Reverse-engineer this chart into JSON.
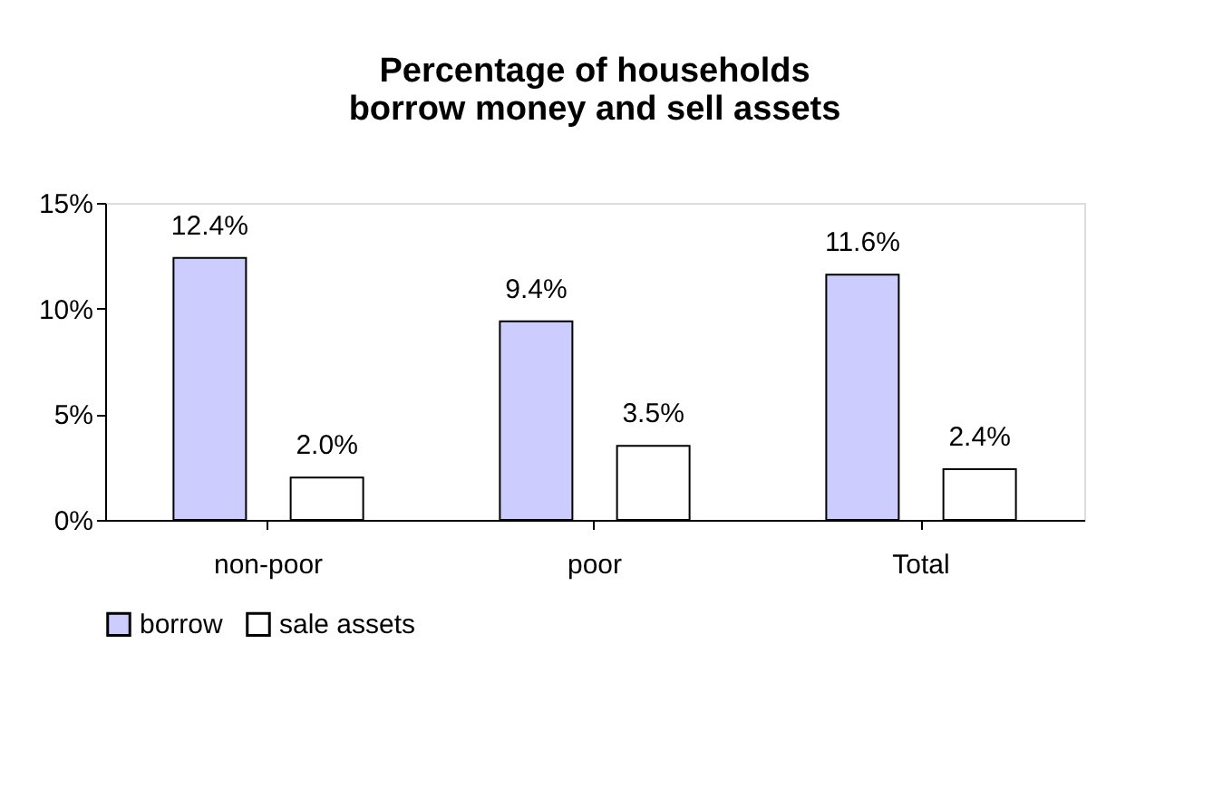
{
  "chart_data": {
    "type": "bar",
    "title": "Percentage of households borrow money and sell assets",
    "categories": [
      "non-poor",
      "poor",
      "Total"
    ],
    "series": [
      {
        "name": "borrow",
        "color": "#ccccff",
        "values": [
          12.4,
          9.4,
          11.6
        ],
        "value_labels": [
          "12.4%",
          "9.4%",
          "11.6%"
        ]
      },
      {
        "name": "sale assets",
        "color": "#ffffff",
        "values": [
          2.0,
          3.5,
          2.4
        ],
        "value_labels": [
          "2.0%",
          "3.5%",
          "2.4%"
        ]
      }
    ],
    "ylim": [
      0,
      15
    ],
    "yticks": [
      {
        "value": 0,
        "label": "0%"
      },
      {
        "value": 5,
        "label": "5%"
      },
      {
        "value": 10,
        "label": "10%"
      },
      {
        "value": 15,
        "label": "15%"
      }
    ],
    "grid": false,
    "legend": "bottom"
  }
}
